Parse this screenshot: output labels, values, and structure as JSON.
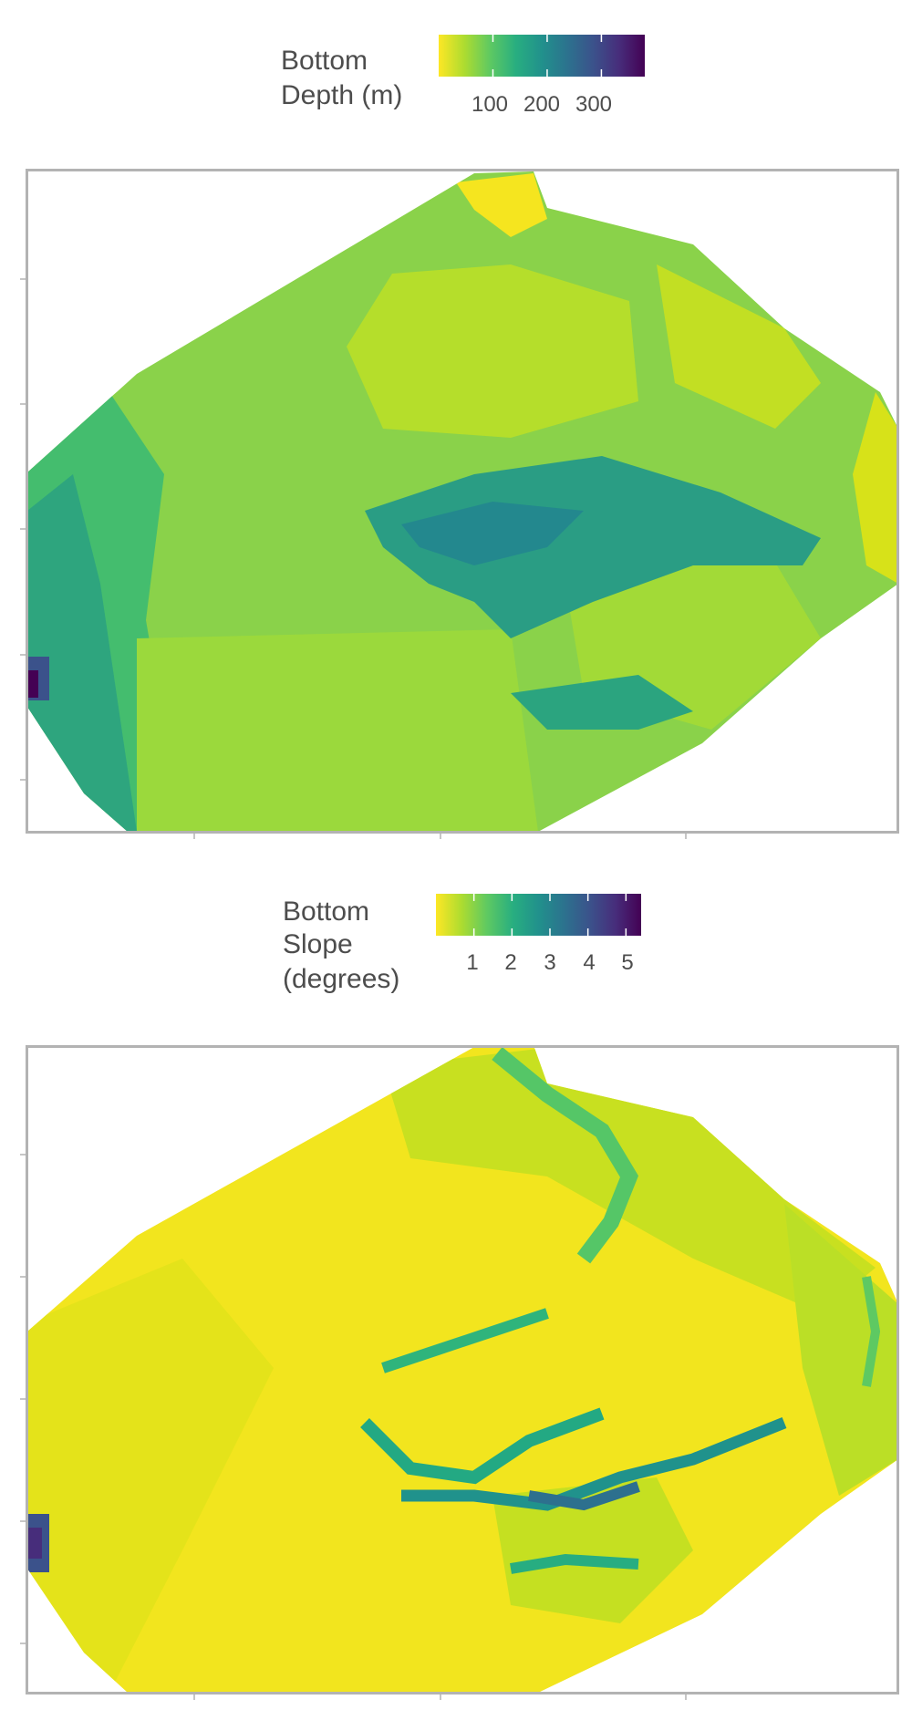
{
  "colors": {
    "panel_border": "#b3b3b3",
    "background": "#ffffff",
    "text": "#4d4d4d",
    "palette": "viridis (reversed: yellow = low, dark purple = high)"
  },
  "chart_data": [
    {
      "type": "heatmap",
      "legend": {
        "title_lines": [
          "Bottom",
          "Depth (m)"
        ],
        "ticks": [
          "100",
          "200",
          "300"
        ],
        "range": [
          0,
          380
        ],
        "tick_values": [
          100,
          200,
          300
        ],
        "placement": "top"
      },
      "grid": false,
      "axis_tick_labels": "none shown",
      "summary_values": {
        "shallow_plateau_typical_m": 70,
        "west_slope_m": 150,
        "central_channel_m": 230,
        "southwest_corner_max_m": 375
      }
    },
    {
      "type": "heatmap",
      "legend": {
        "title_lines": [
          "Bottom",
          "Slope",
          "(degrees)"
        ],
        "ticks": [
          "1",
          "2",
          "3",
          "4",
          "5"
        ],
        "range": [
          0,
          5.4
        ],
        "tick_values": [
          1,
          2,
          3,
          4,
          5
        ],
        "placement": "top"
      },
      "grid": false,
      "axis_tick_labels": "none shown",
      "summary_values": {
        "flat_areas_deg": 0.3,
        "channel_walls_deg": 2.8,
        "steepest_channel_deg": 3.8,
        "southwest_corner_max_deg": 5.2
      }
    }
  ]
}
